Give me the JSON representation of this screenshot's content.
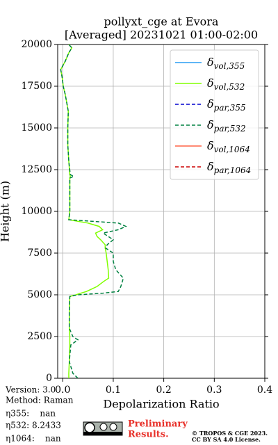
{
  "chart_data": {
    "type": "line",
    "title": "pollyxt_cge at Evora",
    "subtitle": "[Averaged] 20231021 01:00-02:00",
    "x_label": "Depolarization Ratio",
    "y_label": "Height (m)",
    "xlim": [
      -0.01,
      0.4
    ],
    "xticks": [
      {
        "value": 0,
        "label": "0.0"
      },
      0.1,
      0.2,
      0.3,
      0.4
    ],
    "ylim": [
      0,
      20000
    ],
    "yticks": [
      0,
      2500,
      5000,
      7500,
      10000,
      12500,
      15000,
      17500,
      20000
    ],
    "grid": true,
    "legend": "upper right",
    "heights": [
      0,
      300,
      1000,
      2000,
      2300,
      2500,
      3000,
      4000,
      4900,
      5000,
      5100,
      5200,
      5500,
      5800,
      6000,
      6500,
      7000,
      7500,
      7800,
      8000,
      8300,
      8500,
      8700,
      8900,
      9100,
      9300,
      9500,
      10000,
      11000,
      12000,
      12100,
      12200,
      13000,
      14000,
      15000,
      16000,
      17000,
      17500,
      18000,
      18500,
      19000,
      19500,
      19800,
      20000
    ],
    "series": [
      {
        "name": "δvol,355",
        "color": "#2a9df4",
        "dash": false,
        "values": [
          null,
          null,
          null,
          null,
          null,
          null,
          null,
          null,
          null,
          null,
          null,
          null,
          null,
          null,
          null,
          null,
          null,
          null,
          null,
          null,
          null,
          null,
          null,
          null,
          null,
          null,
          null,
          null,
          null,
          null,
          null,
          null,
          null,
          null,
          null,
          null,
          null,
          null,
          null,
          null,
          null,
          null,
          null,
          null
        ]
      },
      {
        "name": "δvol,532",
        "color": "#80ff00",
        "dash": false,
        "values": [
          0.012,
          0.012,
          0.013,
          0.014,
          0.014,
          0.014,
          0.013,
          0.013,
          0.014,
          0.026,
          0.036,
          0.047,
          0.068,
          0.081,
          0.091,
          0.09,
          0.088,
          0.086,
          0.084,
          0.084,
          0.075,
          0.068,
          0.065,
          0.079,
          0.072,
          0.05,
          0.012,
          0.014,
          0.014,
          0.014,
          0.015,
          0.014,
          0.012,
          0.01,
          0.01,
          0.011,
          0.005,
          0.001,
          -0.001,
          -0.004,
          0.005,
          0.012,
          0.018,
          0.012
        ]
      },
      {
        "name": "δpar,355",
        "color": "#0000cd",
        "dash": true,
        "values": [
          null,
          null,
          null,
          null,
          null,
          null,
          null,
          null,
          null,
          null,
          null,
          null,
          null,
          null,
          null,
          null,
          null,
          null,
          null,
          null,
          null,
          null,
          null,
          null,
          null,
          null,
          null,
          null,
          null,
          null,
          null,
          null,
          null,
          null,
          null,
          null,
          null,
          null,
          null,
          null,
          null,
          null,
          null,
          null
        ]
      },
      {
        "name": "δpar,532",
        "color": "#008040",
        "dash": true,
        "values": [
          0.03,
          0.02,
          0.013,
          0.016,
          0.03,
          0.02,
          0.013,
          0.013,
          0.014,
          0.03,
          0.08,
          0.11,
          0.115,
          0.118,
          0.12,
          0.105,
          0.1,
          0.1,
          0.085,
          0.088,
          0.1,
          0.09,
          0.08,
          0.11,
          0.125,
          0.11,
          0.012,
          0.014,
          0.014,
          0.014,
          0.022,
          0.015,
          0.012,
          0.01,
          0.01,
          0.011,
          0.005,
          0.001,
          -0.001,
          -0.004,
          0.005,
          0.012,
          0.018,
          0.012
        ]
      },
      {
        "name": "δvol,1064",
        "color": "#ff6347",
        "dash": false,
        "values": [
          null,
          null,
          null,
          null,
          null,
          null,
          null,
          null,
          null,
          null,
          null,
          null,
          null,
          null,
          null,
          null,
          null,
          null,
          null,
          null,
          null,
          null,
          null,
          null,
          null,
          null,
          null,
          null,
          null,
          null,
          null,
          null,
          null,
          null,
          null,
          null,
          null,
          null,
          null,
          null,
          null,
          null,
          null,
          null
        ]
      },
      {
        "name": "δpar,1064",
        "color": "#cc0000",
        "dash": true,
        "values": [
          null,
          null,
          null,
          null,
          null,
          null,
          null,
          null,
          null,
          null,
          null,
          null,
          null,
          null,
          null,
          null,
          null,
          null,
          null,
          null,
          null,
          null,
          null,
          null,
          null,
          null,
          null,
          null,
          null,
          null,
          null,
          null,
          null,
          null,
          null,
          null,
          null,
          null,
          null,
          null,
          null,
          null,
          null,
          null
        ]
      }
    ]
  },
  "footer": {
    "info": [
      "Version: 3.0",
      "Method: Raman",
      "η355:    nan",
      "η532: 8.2433",
      "η1064:    nan"
    ],
    "notice": [
      "Preliminary",
      "Results."
    ],
    "copyright": [
      "© TROPOS & CGE 2023.",
      "CC BY SA 4.0 License."
    ]
  }
}
